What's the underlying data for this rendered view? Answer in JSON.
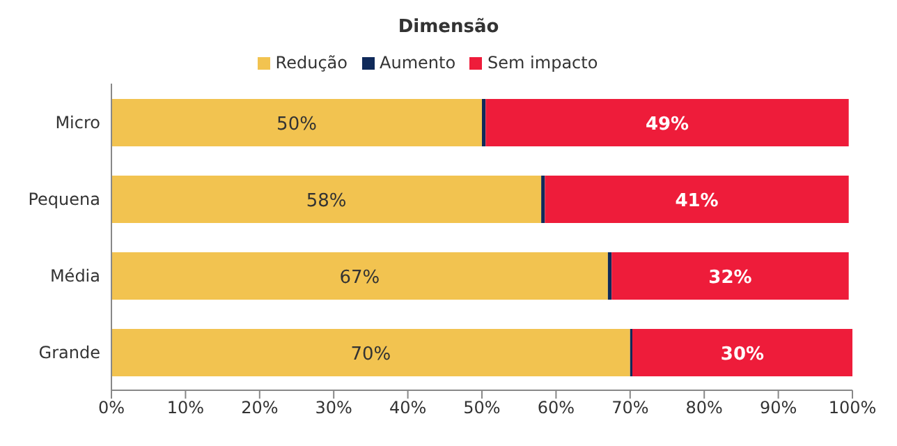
{
  "chart_data": {
    "type": "bar",
    "orientation": "horizontal",
    "stacked": true,
    "title": "Dimensão",
    "categories": [
      "Micro",
      "Pequena",
      "Média",
      "Grande"
    ],
    "series": [
      {
        "name": "Redução",
        "color": "#f2c350",
        "values": [
          50,
          58,
          67,
          70
        ],
        "value_labels": [
          "50%",
          "58%",
          "67%",
          "70%"
        ]
      },
      {
        "name": "Aumento",
        "color": "#0f2a5a",
        "values": [
          0.5,
          0.5,
          0.5,
          0.3
        ],
        "value_labels": [
          null,
          null,
          null,
          null
        ]
      },
      {
        "name": "Sem impacto",
        "color": "#ee1c3a",
        "values": [
          49,
          41,
          32,
          30
        ],
        "value_labels": [
          "49%",
          "41%",
          "32%",
          "30%"
        ]
      }
    ],
    "xlim": [
      0,
      100
    ],
    "xticks": [
      {
        "value": 0,
        "label": "0%"
      },
      {
        "value": 10,
        "label": "10%"
      },
      {
        "value": 20,
        "label": "20%"
      },
      {
        "value": 30,
        "label": "30%"
      },
      {
        "value": 40,
        "label": "40%"
      },
      {
        "value": 50,
        "label": "50%"
      },
      {
        "value": 60,
        "label": "60%"
      },
      {
        "value": 70,
        "label": "70%"
      },
      {
        "value": 80,
        "label": "80%"
      },
      {
        "value": 90,
        "label": "90%"
      },
      {
        "value": 100,
        "label": "100%"
      }
    ],
    "legend": "top",
    "grid": false
  }
}
